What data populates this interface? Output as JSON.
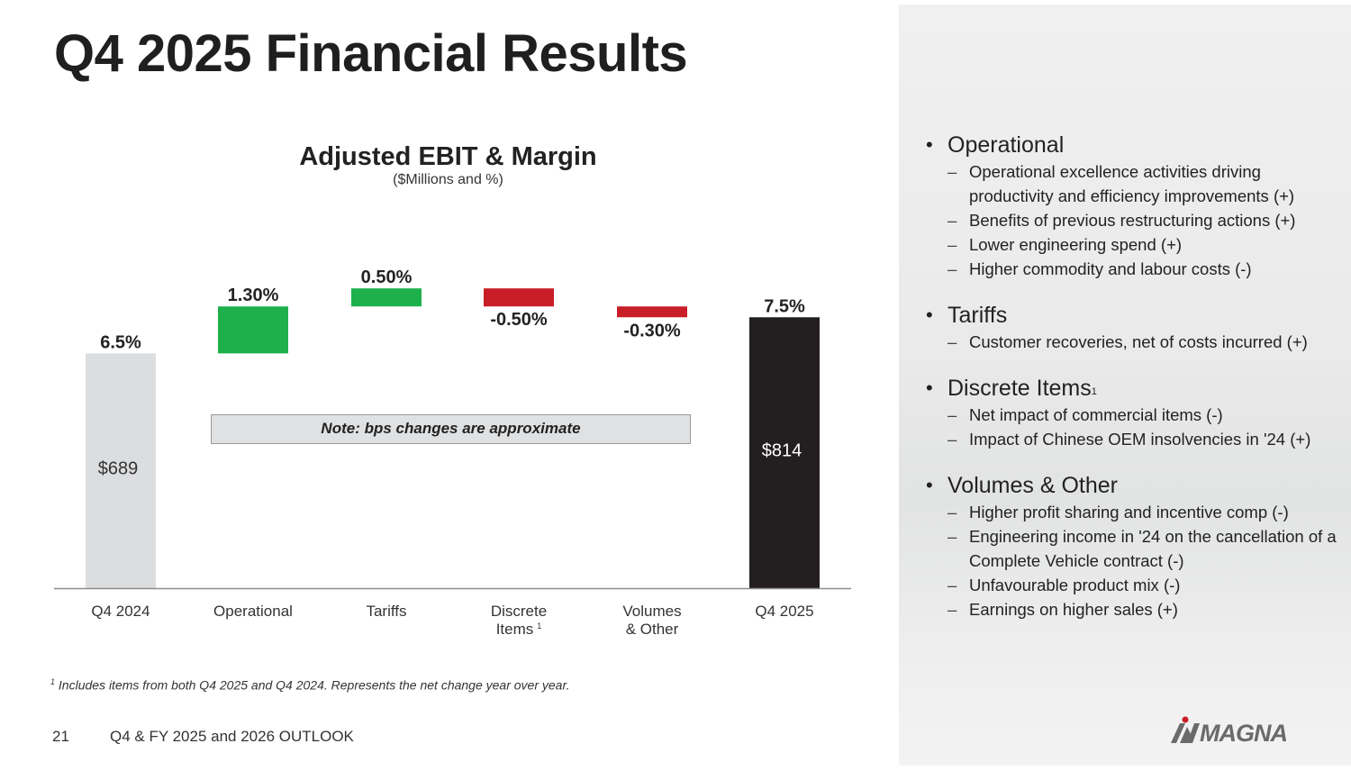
{
  "title": "Q4 2025 Financial Results",
  "chart_data": {
    "type": "bar",
    "subtype": "waterfall",
    "title": "Adjusted EBIT & Margin",
    "subtitle": "($Millions and %)",
    "categories": [
      {
        "line1": "Q4 2024",
        "line2": "",
        "sup": ""
      },
      {
        "line1": "Operational",
        "line2": "",
        "sup": ""
      },
      {
        "line1": "Tariffs",
        "line2": "",
        "sup": ""
      },
      {
        "line1": "Discrete",
        "line2": "Items",
        "sup": "1"
      },
      {
        "line1": "Volumes",
        "line2": "& Other",
        "sup": ""
      },
      {
        "line1": "Q4 2025",
        "line2": "",
        "sup": ""
      }
    ],
    "bars": [
      {
        "kind": "total",
        "start": 0,
        "end": 6.5,
        "label": "6.5%",
        "amount": "$689",
        "color": "#dcdddf",
        "amount_color": "#333333"
      },
      {
        "kind": "increase",
        "start": 6.5,
        "end": 7.8,
        "label": "1.30%",
        "color": "#1db04b"
      },
      {
        "kind": "increase",
        "start": 7.8,
        "end": 8.3,
        "label": "0.50%",
        "color": "#1db04b"
      },
      {
        "kind": "decrease",
        "start": 8.3,
        "end": 7.8,
        "label": "-0.50%",
        "color": "#c81e27"
      },
      {
        "kind": "decrease",
        "start": 7.8,
        "end": 7.5,
        "label": "-0.30%",
        "color": "#c81e27"
      },
      {
        "kind": "total",
        "start": 0,
        "end": 7.5,
        "label": "7.5%",
        "amount": "$814",
        "color": "#231f20",
        "amount_color": "#ffffff"
      }
    ],
    "note": "Note:  bps changes are approximate"
  },
  "footnote": {
    "sup": "1",
    "text": "Includes items from both Q4 2025 and Q4 2024. Represents the net change year over year."
  },
  "footer": {
    "page_number": "21",
    "deck_title": "Q4 & FY 2025 and 2026 OUTLOOK"
  },
  "sidebar": {
    "groups": [
      {
        "heading": "Operational",
        "sup": "",
        "items": [
          "Operational excellence activities driving productivity and efficiency improvements (+)",
          "Benefits of previous restructuring actions (+)",
          "Lower engineering spend (+)",
          "Higher commodity and labour costs (-)"
        ]
      },
      {
        "heading": "Tariffs",
        "sup": "",
        "items": [
          "Customer recoveries, net of costs incurred (+)"
        ]
      },
      {
        "heading": "Discrete Items",
        "sup": "1",
        "items": [
          "Net impact of commercial items (-)",
          "Impact of Chinese OEM insolvencies in '24 (+)"
        ]
      },
      {
        "heading": "Volumes & Other",
        "sup": "",
        "items": [
          "Higher profit sharing and incentive comp (-)",
          "Engineering income in '24 on the cancellation of a Complete Vehicle contract (-)",
          "Unfavourable product mix (-)",
          "Earnings on higher sales (+)"
        ]
      }
    ]
  },
  "logo": {
    "text": "MAGNA",
    "color": "#6a6a6a",
    "accent": "#c81e27"
  }
}
